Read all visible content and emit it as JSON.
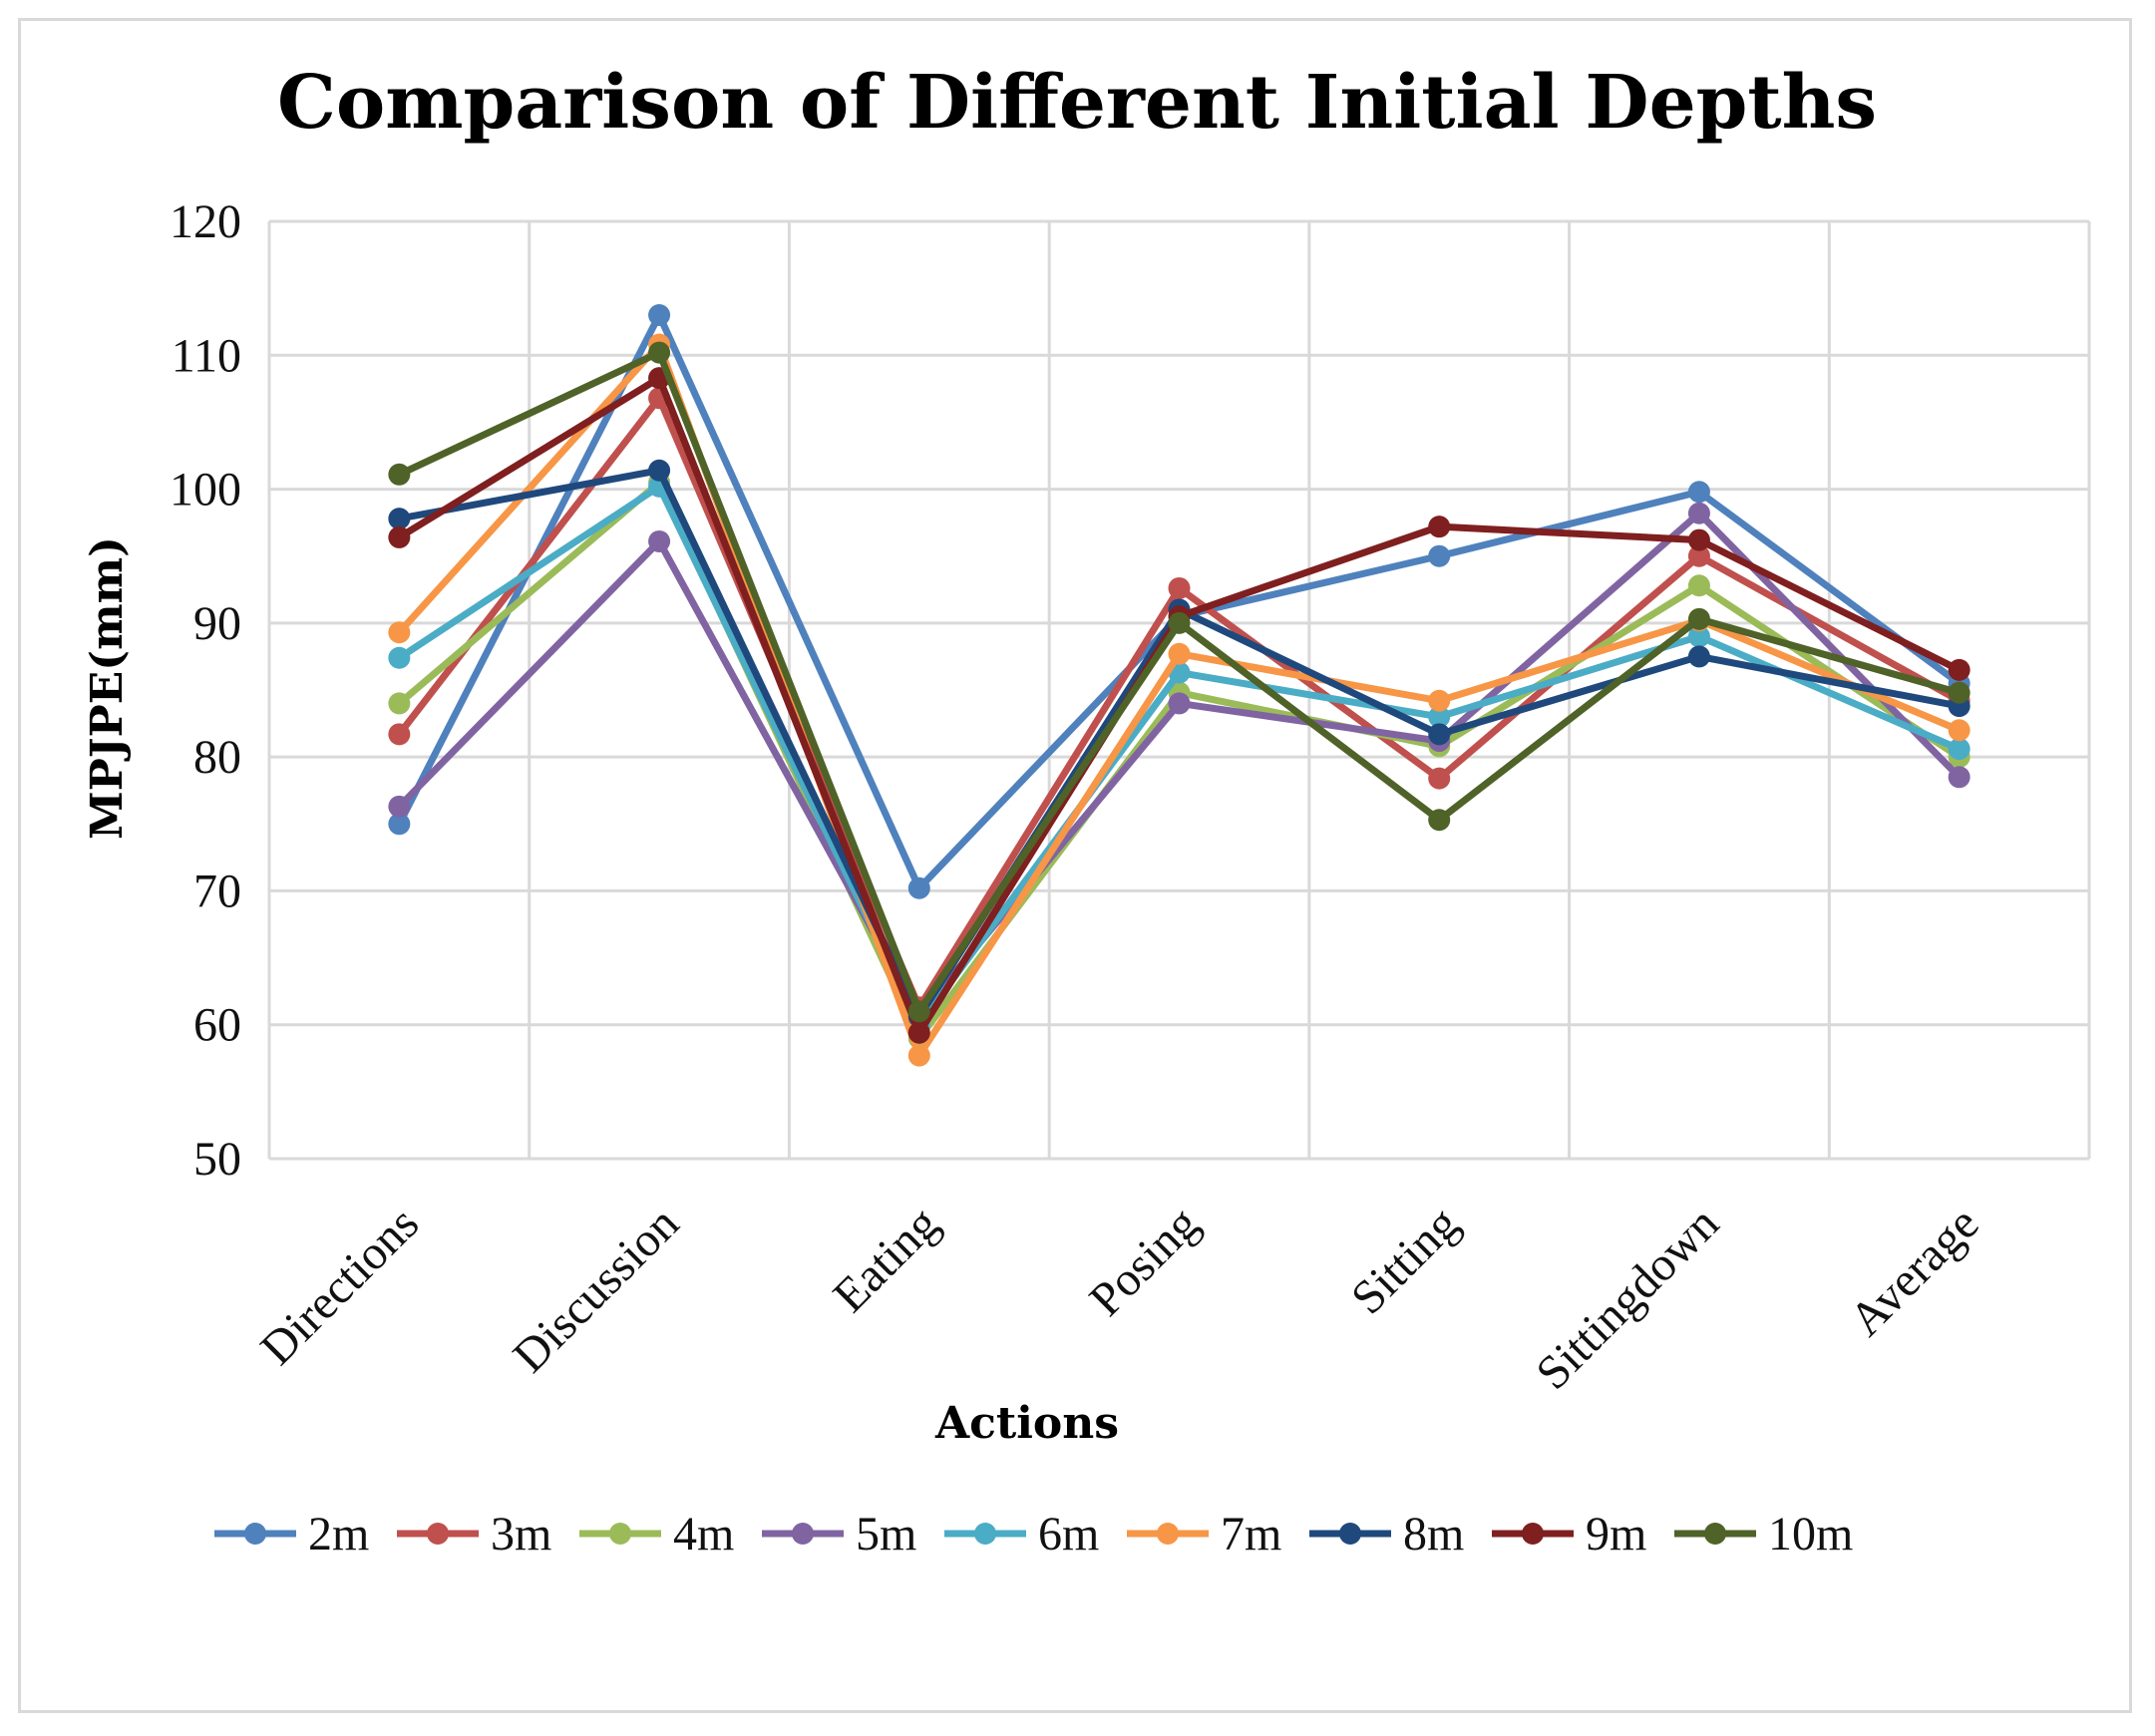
{
  "chart_data": {
    "type": "line",
    "title": "Comparison of Different Initial Depths",
    "xlabel": "Actions",
    "ylabel": "MPJPE(mm)",
    "ylim": [
      50,
      120
    ],
    "yticks": [
      50,
      60,
      70,
      80,
      90,
      100,
      110,
      120
    ],
    "categories": [
      "Directions",
      "Discussion",
      "Eating",
      "Posing",
      "Sitting",
      "Sittingdown",
      "Average"
    ],
    "grid": true,
    "legend_position": "bottom",
    "series": [
      {
        "name": "2m",
        "color": "#4f81bd",
        "values": [
          75.0,
          113.0,
          70.2,
          90.5,
          95.0,
          99.8,
          85.5
        ]
      },
      {
        "name": "3m",
        "color": "#c0504d",
        "values": [
          81.7,
          106.8,
          61.3,
          92.6,
          78.4,
          95.0,
          84.2
        ]
      },
      {
        "name": "4m",
        "color": "#9bbb59",
        "values": [
          84.0,
          100.5,
          59.0,
          84.8,
          80.8,
          92.8,
          80.0
        ]
      },
      {
        "name": "5m",
        "color": "#8064a2",
        "values": [
          76.3,
          96.1,
          60.7,
          84.0,
          81.2,
          98.2,
          78.5
        ]
      },
      {
        "name": "6m",
        "color": "#4bacc6",
        "values": [
          87.4,
          100.2,
          60.0,
          86.3,
          83.0,
          89.0,
          80.6
        ]
      },
      {
        "name": "7m",
        "color": "#f79646",
        "values": [
          89.3,
          110.8,
          57.7,
          87.7,
          84.2,
          90.2,
          82.0
        ]
      },
      {
        "name": "8m",
        "color": "#1f497d",
        "values": [
          97.8,
          101.4,
          60.6,
          91.0,
          81.7,
          87.5,
          83.8
        ]
      },
      {
        "name": "9m",
        "color": "#7f1f1f",
        "values": [
          96.4,
          108.3,
          59.4,
          90.5,
          97.2,
          96.2,
          86.5
        ]
      },
      {
        "name": "10m",
        "color": "#4f6228",
        "values": [
          101.1,
          110.2,
          61.0,
          90.0,
          75.3,
          90.3,
          84.8
        ]
      }
    ]
  }
}
